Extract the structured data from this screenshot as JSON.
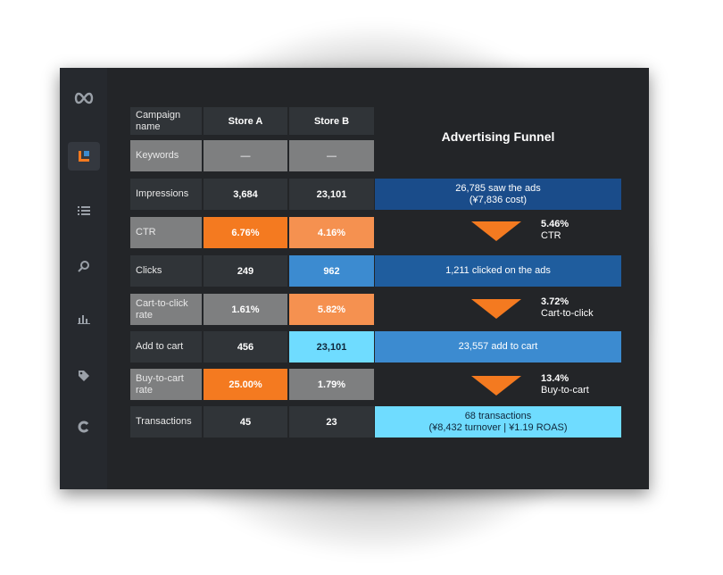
{
  "table": {
    "header": {
      "label": "Campaign name",
      "store_a": "Store A",
      "store_b": "Store B"
    },
    "rows": [
      {
        "label": "Keywords",
        "a": "—",
        "b": "—"
      },
      {
        "label": "Impressions",
        "a": "3,684",
        "b": "23,101"
      },
      {
        "label": "CTR",
        "a": "6.76%",
        "b": "4.16%"
      },
      {
        "label": "Clicks",
        "a": "249",
        "b": "962"
      },
      {
        "label": "Cart-to-click rate",
        "a": "1.61%",
        "b": "5.82%"
      },
      {
        "label": "Add to cart",
        "a": "456",
        "b": "23,101"
      },
      {
        "label": "Buy-to-cart rate",
        "a": "25.00%",
        "b": "1.79%"
      },
      {
        "label": "Transactions",
        "a": "45",
        "b": "23"
      }
    ]
  },
  "funnel": {
    "title": "Advertising Funnel",
    "stages": [
      {
        "line1": "26,785 saw the ads",
        "line2": "(¥7,836 cost)"
      },
      {
        "line1": "1,211 clicked on the ads",
        "line2": ""
      },
      {
        "line1": "23,557 add to cart",
        "line2": ""
      },
      {
        "line1": "68 transactions",
        "line2": "(¥8,432 turnover | ¥1.19 ROAS)"
      }
    ],
    "rates": [
      {
        "value": "5.46%",
        "name": "CTR"
      },
      {
        "value": "3.72%",
        "name": "Cart-to-click"
      },
      {
        "value": "13.4%",
        "name": "Buy-to-cart"
      }
    ]
  },
  "sidebar": {
    "icons": [
      "infinity-logo-icon",
      "dashboard-icon",
      "list-icon",
      "search-icon",
      "bar-chart-icon",
      "tag-icon",
      "refresh-icon"
    ]
  },
  "colors": {
    "dark_cell": "#303438",
    "grey_cell": "#7e7f80",
    "orange": "#f47a20",
    "light_orange": "#f59150",
    "blue": "#3c8bd0",
    "cyan": "#6fdcff",
    "navy": "#1a4c8a",
    "mid_blue": "#1f5d9e"
  }
}
